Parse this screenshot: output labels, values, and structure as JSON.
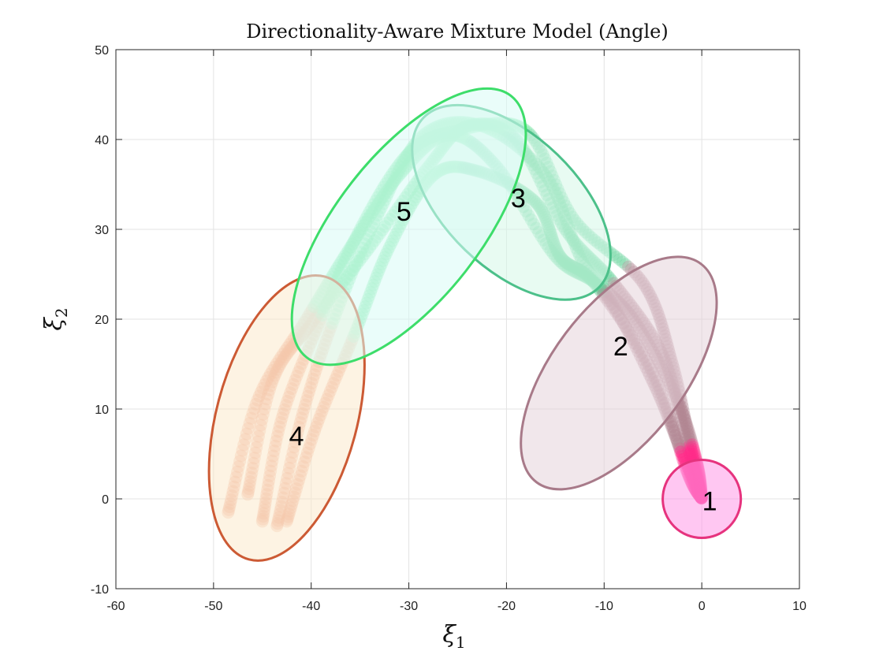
{
  "chart_data": {
    "type": "scatter",
    "title": "Directionality-Aware Mixture Model (Angle)",
    "xlabel": "ξ",
    "xlabel_sub": "1",
    "ylabel": "ξ",
    "ylabel_sub": "2",
    "xlim": [
      -60,
      10
    ],
    "ylim": [
      -10,
      50
    ],
    "xticks": [
      -60,
      -50,
      -40,
      -30,
      -20,
      -10,
      0,
      10
    ],
    "yticks": [
      -10,
      0,
      10,
      20,
      30,
      40,
      50
    ],
    "grid": true,
    "clusters": [
      {
        "label": "1",
        "center": [
          0,
          0
        ],
        "semi_axes": [
          4,
          4
        ],
        "angle_deg": 0,
        "edge_color": "#e6337e",
        "fill_color": "#ff99e8",
        "point_color": "#ff2d8a",
        "label_pos": [
          0.8,
          -0.2
        ]
      },
      {
        "label": "2",
        "center": [
          -8.5,
          14
        ],
        "semi_axes": [
          14,
          6.8
        ],
        "angle_deg": 53,
        "edge_color": "#a87a89",
        "fill_color": "#e6d3da",
        "point_color": "#b08592",
        "label_pos": [
          -8.3,
          17
        ]
      },
      {
        "label": "3",
        "center": [
          -19.5,
          33
        ],
        "semi_axes": [
          12.5,
          6.8
        ],
        "angle_deg": -44,
        "edge_color": "#4cc08a",
        "fill_color": "#d5f7e8",
        "point_color": "#68d49c",
        "label_pos": [
          -18.8,
          33.5
        ]
      },
      {
        "label": "4",
        "center": [
          -42.5,
          9
        ],
        "semi_axes": [
          15,
          7.2
        ],
        "angle_deg": 75,
        "edge_color": "#cc5a34",
        "fill_color": "#fbe9cc",
        "point_color": "#ec9c7e",
        "label_pos": [
          -41.5,
          7
        ]
      },
      {
        "label": "5",
        "center": [
          -30,
          30.3
        ],
        "semi_axes": [
          17,
          7.4
        ],
        "angle_deg": 52,
        "edge_color": "#3ddd6a",
        "fill_color": "#d8fbf6",
        "point_color": "#72e6a0",
        "label_pos": [
          -30.5,
          32
        ]
      }
    ],
    "trajectories": [
      {
        "cluster_points": [
          [
            -46.5,
            0.5
          ],
          [
            -44,
            13
          ],
          [
            -40,
            19.5
          ],
          [
            -34,
            28
          ],
          [
            -28,
            37
          ],
          [
            -24,
            41.5
          ],
          [
            -19,
            40
          ],
          [
            -14,
            30
          ],
          [
            -9,
            24
          ],
          [
            -4,
            16
          ],
          [
            -1.5,
            6
          ],
          [
            0,
            0
          ]
        ]
      },
      {
        "cluster_points": [
          [
            -48.5,
            -1.5
          ],
          [
            -45.5,
            11
          ],
          [
            -40.5,
            20
          ],
          [
            -36,
            28
          ],
          [
            -31,
            36
          ],
          [
            -26,
            40.5
          ],
          [
            -21,
            37
          ],
          [
            -15,
            27
          ],
          [
            -10,
            23
          ],
          [
            -5,
            13
          ],
          [
            -2,
            5
          ],
          [
            0,
            0
          ]
        ]
      },
      {
        "cluster_points": [
          [
            -45,
            -2.5
          ],
          [
            -43,
            9
          ],
          [
            -39,
            20
          ],
          [
            -35,
            30
          ],
          [
            -30,
            38.5
          ],
          [
            -25,
            41
          ],
          [
            -18,
            41
          ],
          [
            -13,
            31
          ],
          [
            -6,
            24
          ],
          [
            -3,
            15
          ],
          [
            -1,
            5
          ],
          [
            0,
            0
          ]
        ]
      },
      {
        "cluster_points": [
          [
            -43.5,
            -3
          ],
          [
            -41,
            9
          ],
          [
            -37.5,
            20.5
          ],
          [
            -33,
            32
          ],
          [
            -28.5,
            40.5
          ],
          [
            -22.5,
            41.5
          ],
          [
            -16,
            36
          ],
          [
            -12,
            26
          ],
          [
            -7,
            20
          ],
          [
            -2.5,
            11
          ],
          [
            -0.5,
            4
          ],
          [
            0,
            0
          ]
        ]
      },
      {
        "cluster_points": [
          [
            -42.5,
            -2.5
          ],
          [
            -39.5,
            8
          ],
          [
            -35.5,
            18.5
          ],
          [
            -32,
            28
          ],
          [
            -27.5,
            36
          ],
          [
            -23,
            36.5
          ],
          [
            -17,
            33
          ],
          [
            -14.5,
            27
          ],
          [
            -11,
            24
          ],
          [
            -5,
            14
          ],
          [
            -1.5,
            3
          ],
          [
            0,
            0
          ]
        ]
      }
    ]
  }
}
